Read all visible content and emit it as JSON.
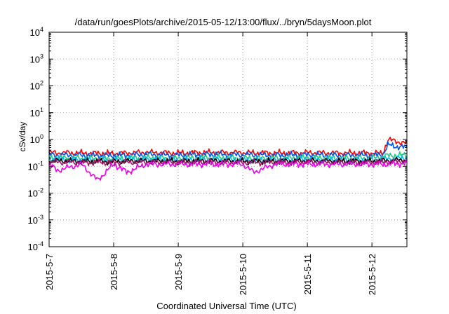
{
  "chart_data": {
    "type": "line",
    "title": "/data/run/goesPlots/archive/2015-05-12/13:00/flux/../bryn/5daysMoon.plot",
    "xlabel": "Coordinated Universal Time (UTC)",
    "ylabel": "cSv/day",
    "yscale": "log",
    "ylim": [
      0.0001,
      10000
    ],
    "xlim": [
      "2015-05-07",
      "2015-05-12 13:00"
    ],
    "grid": true,
    "y_ticks": [
      {
        "base": "10",
        "exp": "-4"
      },
      {
        "base": "10",
        "exp": "-3"
      },
      {
        "base": "10",
        "exp": "-2"
      },
      {
        "base": "10",
        "exp": "-1"
      },
      {
        "base": "10",
        "exp": "0"
      },
      {
        "base": "10",
        "exp": "1"
      },
      {
        "base": "10",
        "exp": "2"
      },
      {
        "base": "10",
        "exp": "3"
      },
      {
        "base": "10",
        "exp": "4"
      }
    ],
    "x_ticks": [
      "2015-5-7",
      "2015-5-8",
      "2015-5-9",
      "2015-5-10",
      "2015-5-11",
      "2015-5-12"
    ],
    "x_tick_times": [
      "2015-05-07",
      "2015-05-08",
      "2015-05-09",
      "2015-05-10",
      "2015-05-11",
      "2015-05-12"
    ],
    "series": [
      {
        "color": "#ff0000",
        "x": [
          "2015-05-07 00:00",
          "2015-05-07 12:00",
          "2015-05-08 00:00",
          "2015-05-08 12:00",
          "2015-05-09 00:00",
          "2015-05-09 12:00",
          "2015-05-10 00:00",
          "2015-05-10 12:00",
          "2015-05-11 00:00",
          "2015-05-11 12:00",
          "2015-05-12 00:00",
          "2015-05-12 04:00",
          "2015-05-12 06:00",
          "2015-05-12 09:00",
          "2015-05-12 13:00"
        ],
        "y": [
          0.32,
          0.31,
          0.3,
          0.33,
          0.31,
          0.33,
          0.32,
          0.31,
          0.32,
          0.31,
          0.31,
          0.3,
          1.0,
          0.85,
          0.72
        ]
      },
      {
        "color": "#0055ee",
        "x": [
          "2015-05-07 00:00",
          "2015-05-07 12:00",
          "2015-05-08 00:00",
          "2015-05-08 12:00",
          "2015-05-09 00:00",
          "2015-05-09 12:00",
          "2015-05-10 00:00",
          "2015-05-10 12:00",
          "2015-05-11 00:00",
          "2015-05-11 12:00",
          "2015-05-12 00:00",
          "2015-05-12 04:00",
          "2015-05-12 06:00",
          "2015-05-12 09:00",
          "2015-05-12 13:00"
        ],
        "y": [
          0.27,
          0.26,
          0.25,
          0.28,
          0.26,
          0.28,
          0.27,
          0.26,
          0.27,
          0.26,
          0.26,
          0.27,
          0.62,
          0.55,
          0.5
        ]
      },
      {
        "color": "#22cc88",
        "x": [
          "2015-05-07 00:00",
          "2015-05-07 12:00",
          "2015-05-08 00:00",
          "2015-05-08 12:00",
          "2015-05-09 00:00",
          "2015-05-09 12:00",
          "2015-05-10 00:00",
          "2015-05-10 12:00",
          "2015-05-11 00:00",
          "2015-05-11 12:00",
          "2015-05-12 00:00",
          "2015-05-12 06:00",
          "2015-05-12 13:00"
        ],
        "y": [
          0.21,
          0.2,
          0.19,
          0.21,
          0.2,
          0.21,
          0.2,
          0.2,
          0.21,
          0.2,
          0.2,
          0.25,
          0.26
        ]
      },
      {
        "color": "#00bbee",
        "x": [
          "2015-05-07 00:00",
          "2015-05-07 12:00",
          "2015-05-08 00:00",
          "2015-05-08 12:00",
          "2015-05-09 00:00",
          "2015-05-09 12:00",
          "2015-05-10 00:00",
          "2015-05-10 12:00",
          "2015-05-11 00:00",
          "2015-05-11 12:00",
          "2015-05-12 00:00",
          "2015-05-12 06:00",
          "2015-05-12 13:00"
        ],
        "y": [
          0.18,
          0.17,
          0.17,
          0.18,
          0.17,
          0.18,
          0.17,
          0.17,
          0.18,
          0.17,
          0.17,
          0.19,
          0.2
        ]
      },
      {
        "color": "#000000",
        "x": [
          "2015-05-07 00:00",
          "2015-05-07 12:00",
          "2015-05-08 00:00",
          "2015-05-08 12:00",
          "2015-05-09 00:00",
          "2015-05-09 12:00",
          "2015-05-10 00:00",
          "2015-05-10 12:00",
          "2015-05-11 00:00",
          "2015-05-11 12:00",
          "2015-05-12 00:00",
          "2015-05-12 06:00",
          "2015-05-12 13:00"
        ],
        "y": [
          0.16,
          0.155,
          0.15,
          0.16,
          0.155,
          0.16,
          0.155,
          0.155,
          0.16,
          0.155,
          0.155,
          0.165,
          0.17
        ]
      },
      {
        "color": "#aa1166",
        "x": [
          "2015-05-07 00:00",
          "2015-05-07 12:00",
          "2015-05-08 00:00",
          "2015-05-08 12:00",
          "2015-05-09 00:00",
          "2015-05-09 12:00",
          "2015-05-10 00:00",
          "2015-05-10 12:00",
          "2015-05-11 00:00",
          "2015-05-11 12:00",
          "2015-05-12 00:00",
          "2015-05-12 06:00",
          "2015-05-12 13:00"
        ],
        "y": [
          0.145,
          0.14,
          0.14,
          0.145,
          0.14,
          0.145,
          0.14,
          0.14,
          0.145,
          0.14,
          0.14,
          0.15,
          0.155
        ]
      },
      {
        "color": "#ee00ee",
        "x": [
          "2015-05-07 00:00",
          "2015-05-07 03:00",
          "2015-05-07 12:00",
          "2015-05-07 18:00",
          "2015-05-08 00:00",
          "2015-05-08 05:00",
          "2015-05-08 12:00",
          "2015-05-09 00:00",
          "2015-05-09 12:00",
          "2015-05-10 00:00",
          "2015-05-10 04:00",
          "2015-05-10 12:00",
          "2015-05-11 00:00",
          "2015-05-11 12:00",
          "2015-05-12 00:00",
          "2015-05-12 06:00",
          "2015-05-12 13:00"
        ],
        "y": [
          0.12,
          0.07,
          0.12,
          0.03,
          0.12,
          0.06,
          0.12,
          0.12,
          0.12,
          0.12,
          0.06,
          0.12,
          0.12,
          0.12,
          0.12,
          0.12,
          0.13
        ]
      }
    ]
  }
}
